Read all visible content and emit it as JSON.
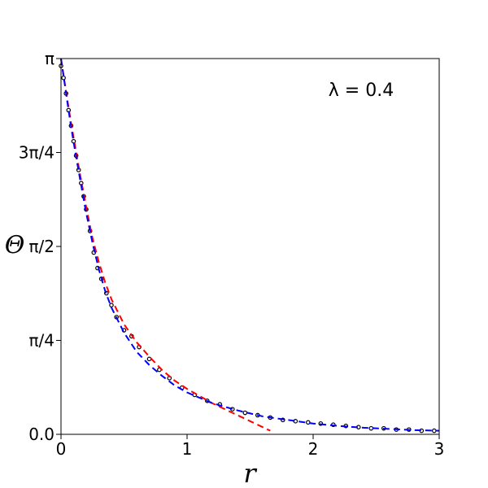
{
  "chart_data": {
    "type": "line",
    "title": "",
    "xlabel": "r",
    "ylabel": "Θ",
    "xlim": [
      0,
      3
    ],
    "ylim": [
      0,
      3.14159
    ],
    "xticks": [
      {
        "value": 0,
        "label": "0"
      },
      {
        "value": 1,
        "label": "1"
      },
      {
        "value": 2,
        "label": "2"
      },
      {
        "value": 3,
        "label": "3"
      }
    ],
    "yticks": [
      {
        "value": 0,
        "label": "0.0"
      },
      {
        "value": 0.7854,
        "label": "π/4"
      },
      {
        "value": 1.5708,
        "label": "π/2"
      },
      {
        "value": 2.3562,
        "label": "3π/4"
      },
      {
        "value": 3.14159,
        "label": "π"
      }
    ],
    "annotation": "λ = 0.4",
    "grid": false,
    "series": [
      {
        "style": "markers",
        "color": "#000000",
        "marker": "open-circle",
        "points": [
          [
            0.0,
            3.08
          ],
          [
            0.02,
            2.98
          ],
          [
            0.04,
            2.85
          ],
          [
            0.06,
            2.71
          ],
          [
            0.08,
            2.58
          ],
          [
            0.1,
            2.45
          ],
          [
            0.12,
            2.33
          ],
          [
            0.14,
            2.21
          ],
          [
            0.16,
            2.1
          ],
          [
            0.18,
            1.99
          ],
          [
            0.2,
            1.88
          ],
          [
            0.23,
            1.7
          ],
          [
            0.26,
            1.52
          ],
          [
            0.29,
            1.39
          ],
          [
            0.32,
            1.3
          ],
          [
            0.36,
            1.18
          ],
          [
            0.4,
            1.08
          ],
          [
            0.44,
            0.98
          ],
          [
            0.5,
            0.87
          ],
          [
            0.56,
            0.82
          ],
          [
            0.62,
            0.73
          ],
          [
            0.7,
            0.63
          ],
          [
            0.78,
            0.54
          ],
          [
            0.86,
            0.47
          ],
          [
            0.96,
            0.39
          ],
          [
            1.06,
            0.33
          ],
          [
            1.16,
            0.28
          ],
          [
            1.26,
            0.25
          ],
          [
            1.36,
            0.21
          ],
          [
            1.46,
            0.18
          ],
          [
            1.56,
            0.16
          ],
          [
            1.66,
            0.14
          ],
          [
            1.76,
            0.12
          ],
          [
            1.86,
            0.11
          ],
          [
            1.96,
            0.1
          ],
          [
            2.06,
            0.09
          ],
          [
            2.16,
            0.08
          ],
          [
            2.26,
            0.07
          ],
          [
            2.36,
            0.06
          ],
          [
            2.46,
            0.05
          ],
          [
            2.56,
            0.05
          ],
          [
            2.66,
            0.04
          ],
          [
            2.76,
            0.04
          ],
          [
            2.86,
            0.03
          ],
          [
            2.96,
            0.03
          ]
        ]
      },
      {
        "style": "dashed",
        "color": "#ff0000",
        "points": [
          [
            0.0,
            3.14
          ],
          [
            0.02,
            3.0
          ],
          [
            0.05,
            2.8
          ],
          [
            0.08,
            2.6
          ],
          [
            0.11,
            2.42
          ],
          [
            0.15,
            2.18
          ],
          [
            0.2,
            1.9
          ],
          [
            0.25,
            1.64
          ],
          [
            0.3,
            1.44
          ],
          [
            0.35,
            1.27
          ],
          [
            0.4,
            1.13
          ],
          [
            0.5,
            0.92
          ],
          [
            0.6,
            0.77
          ],
          [
            0.7,
            0.65
          ],
          [
            0.8,
            0.54
          ],
          [
            0.9,
            0.45
          ],
          [
            1.0,
            0.38
          ],
          [
            1.1,
            0.32
          ],
          [
            1.2,
            0.26
          ],
          [
            1.3,
            0.21
          ],
          [
            1.4,
            0.16
          ],
          [
            1.5,
            0.11
          ],
          [
            1.6,
            0.06
          ],
          [
            1.66,
            0.03
          ]
        ]
      },
      {
        "style": "dashed",
        "color": "#0000ff",
        "points": [
          [
            0.0,
            3.14
          ],
          [
            0.02,
            3.0
          ],
          [
            0.05,
            2.78
          ],
          [
            0.08,
            2.57
          ],
          [
            0.11,
            2.38
          ],
          [
            0.15,
            2.14
          ],
          [
            0.2,
            1.85
          ],
          [
            0.25,
            1.6
          ],
          [
            0.3,
            1.38
          ],
          [
            0.35,
            1.2
          ],
          [
            0.4,
            1.06
          ],
          [
            0.5,
            0.85
          ],
          [
            0.6,
            0.69
          ],
          [
            0.7,
            0.58
          ],
          [
            0.8,
            0.49
          ],
          [
            0.9,
            0.41
          ],
          [
            1.0,
            0.35
          ],
          [
            1.2,
            0.26
          ],
          [
            1.4,
            0.2
          ],
          [
            1.6,
            0.15
          ],
          [
            1.8,
            0.12
          ],
          [
            2.0,
            0.09
          ],
          [
            2.2,
            0.07
          ],
          [
            2.4,
            0.055
          ],
          [
            2.6,
            0.045
          ],
          [
            2.8,
            0.035
          ],
          [
            3.0,
            0.03
          ]
        ]
      }
    ]
  }
}
